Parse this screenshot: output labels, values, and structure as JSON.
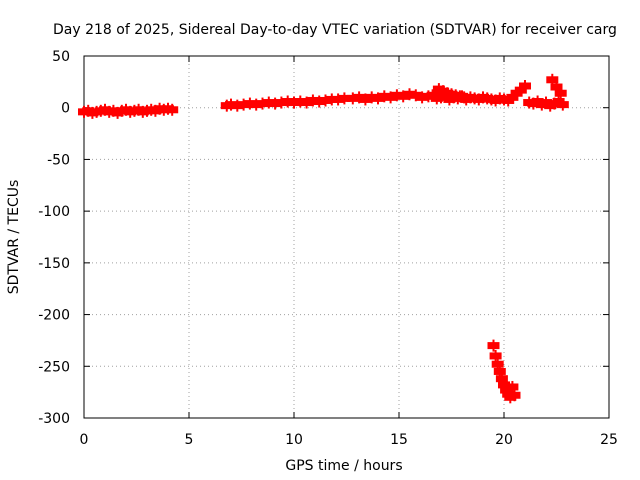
{
  "chart_data": {
    "type": "scatter",
    "title": "Day 218 of 2025, Sidereal Day-to-day VTEC variation (SDTVAR) for receiver carg",
    "xlabel": "GPS time / hours",
    "ylabel": "SDTVAR / TECUs",
    "xlim": [
      0,
      25
    ],
    "ylim": [
      -300,
      50
    ],
    "xticks": [
      0,
      5,
      10,
      15,
      20,
      25
    ],
    "yticks": [
      50,
      0,
      -50,
      -100,
      -150,
      -200,
      -250,
      -300
    ],
    "grid": true,
    "marker_color": "#ff0000",
    "series": [
      {
        "name": "SDTVAR",
        "x": [
          0.0,
          0.2,
          0.4,
          0.6,
          0.8,
          1.0,
          1.2,
          1.4,
          1.6,
          1.8,
          2.0,
          2.2,
          2.4,
          2.6,
          2.8,
          3.0,
          3.2,
          3.4,
          3.6,
          3.8,
          4.0,
          4.2,
          6.8,
          7.0,
          7.3,
          7.6,
          7.9,
          8.2,
          8.5,
          8.8,
          9.1,
          9.4,
          9.7,
          10.0,
          10.3,
          10.6,
          10.9,
          11.2,
          11.5,
          11.8,
          12.1,
          12.4,
          12.8,
          13.1,
          13.4,
          13.7,
          14.0,
          14.3,
          14.6,
          14.9,
          15.2,
          15.5,
          15.8,
          16.1,
          16.4,
          16.6,
          16.8,
          17.0,
          17.2,
          17.4,
          17.6,
          17.8,
          18.0,
          18.2,
          18.4,
          18.6,
          18.8,
          19.0,
          19.2,
          19.4,
          19.6,
          19.8,
          20.0,
          20.2,
          20.4,
          16.9,
          17.1,
          17.3,
          17.5,
          17.7,
          17.9,
          18.1,
          20.6,
          20.8,
          21.0,
          21.2,
          21.4,
          21.6,
          21.8,
          22.0,
          22.2,
          22.4,
          22.6,
          22.8,
          22.3,
          22.5,
          22.7,
          19.5,
          19.6,
          19.7,
          19.8,
          19.9,
          20.0,
          20.1,
          20.2,
          20.3,
          20.4,
          20.5
        ],
        "y": [
          -4,
          -3,
          -5,
          -4,
          -3,
          -2,
          -4,
          -3,
          -5,
          -3,
          -2,
          -4,
          -3,
          -2,
          -4,
          -3,
          -2,
          -3,
          -1,
          -2,
          -1,
          -2,
          2,
          3,
          2,
          3,
          4,
          3,
          4,
          5,
          4,
          5,
          6,
          5,
          6,
          5,
          7,
          6,
          7,
          8,
          8,
          9,
          9,
          10,
          8,
          10,
          9,
          11,
          10,
          12,
          11,
          13,
          12,
          10,
          11,
          12,
          9,
          10,
          11,
          8,
          10,
          9,
          11,
          8,
          10,
          9,
          8,
          10,
          9,
          8,
          7,
          9,
          8,
          7,
          10,
          18,
          16,
          14,
          13,
          12,
          11,
          10,
          14,
          17,
          21,
          5,
          4,
          6,
          3,
          5,
          2,
          4,
          6,
          3,
          27,
          20,
          14,
          -230,
          -240,
          -248,
          -255,
          -262,
          -268,
          -273,
          -277,
          -280,
          -270,
          -278
        ]
      }
    ]
  }
}
